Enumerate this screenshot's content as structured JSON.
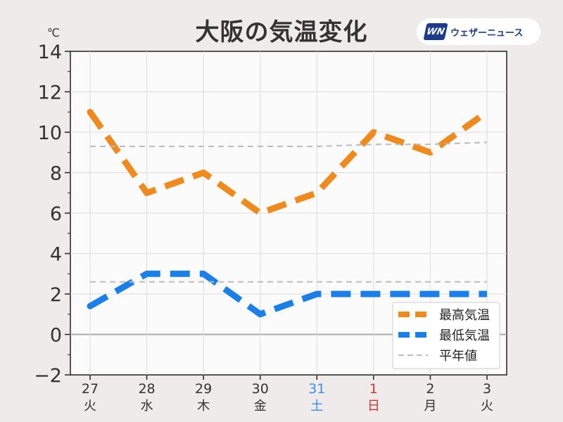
{
  "title": "大阪の気温変化",
  "logo": {
    "mark": "WN",
    "text": "ウェザーニュース"
  },
  "colors": {
    "high": "#f08a1c",
    "low": "#1a7fe8",
    "normal": "#bbbbbb",
    "saturday": "#3a8ee6",
    "sunday": "#d8342a"
  },
  "chart_data": {
    "type": "line",
    "title": "大阪の気温変化",
    "ylabel": "℃",
    "ylim": [
      -2,
      14
    ],
    "yticks": [
      "−2",
      "0",
      "2",
      "4",
      "6",
      "8",
      "10",
      "12",
      "14"
    ],
    "x_dates": [
      "27",
      "28",
      "29",
      "30",
      "31",
      "1",
      "2",
      "3"
    ],
    "x_days": [
      "火",
      "水",
      "木",
      "金",
      "土",
      "日",
      "月",
      "火"
    ],
    "x_day_kind": [
      "weekday",
      "weekday",
      "weekday",
      "weekday",
      "saturday",
      "sunday",
      "weekday",
      "weekday"
    ],
    "grid": true,
    "legend_position": "bottom-right",
    "series": [
      {
        "name": "最高気温",
        "style": "dashed-thick",
        "color": "#f08a1c",
        "values": [
          11,
          7,
          8,
          6,
          7,
          10,
          9,
          11
        ]
      },
      {
        "name": "最低気温",
        "style": "dashed-thick",
        "color": "#1a7fe8",
        "values": [
          1.4,
          3,
          3,
          1,
          2,
          2,
          2,
          2
        ]
      },
      {
        "name": "平年値",
        "style": "dashed-thin",
        "color": "#bbbbbb",
        "values": [
          9.3,
          9.3,
          9.3,
          9.3,
          9.3,
          9.4,
          9.4,
          9.5
        ]
      },
      {
        "name": "",
        "style": "dashed-thin",
        "color": "#bbbbbb",
        "values": [
          2.6,
          2.6,
          2.6,
          2.6,
          2.6,
          2.6,
          2.6,
          2.6
        ]
      }
    ]
  }
}
